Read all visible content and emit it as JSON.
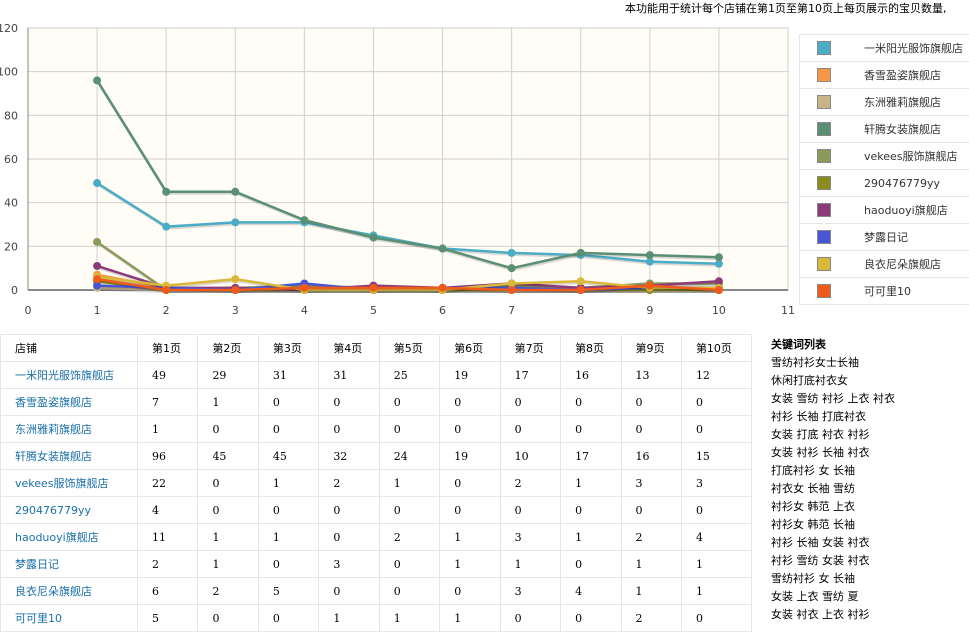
{
  "header": {
    "note": "本功能用于统计每个店铺在第1页至第10页上每页展示的宝贝数量,"
  },
  "chart_data": {
    "type": "line",
    "x": [
      1,
      2,
      3,
      4,
      5,
      6,
      7,
      8,
      9,
      10
    ],
    "xlim": [
      0,
      11
    ],
    "ylim": [
      0,
      120
    ],
    "xticks": [
      0,
      1,
      2,
      3,
      4,
      5,
      6,
      7,
      8,
      9,
      10,
      11
    ],
    "yticks": [
      0,
      20,
      40,
      60,
      80,
      100,
      120
    ],
    "grid": true,
    "legend_position": "right",
    "series": [
      {
        "name": "一米阳光服饰旗舰店",
        "color": "#4bacc6",
        "values": [
          49,
          29,
          31,
          31,
          25,
          19,
          17,
          16,
          13,
          12
        ]
      },
      {
        "name": "香雪盈姿旗舰店",
        "color": "#f79646",
        "values": [
          7,
          1,
          0,
          0,
          0,
          0,
          0,
          0,
          0,
          0
        ]
      },
      {
        "name": "东洲雅莉旗舰店",
        "color": "#c9b48a",
        "values": [
          1,
          0,
          0,
          0,
          0,
          0,
          0,
          0,
          0,
          0
        ]
      },
      {
        "name": "轩腾女装旗舰店",
        "color": "#5a8f73",
        "values": [
          96,
          45,
          45,
          32,
          24,
          19,
          10,
          17,
          16,
          15
        ]
      },
      {
        "name": "vekees服饰旗舰店",
        "color": "#8a9a5b",
        "values": [
          22,
          0,
          1,
          2,
          1,
          0,
          2,
          1,
          3,
          3
        ]
      },
      {
        "name": "290476779yy",
        "color": "#8b8b1e",
        "values": [
          4,
          0,
          0,
          0,
          0,
          0,
          0,
          0,
          0,
          0
        ]
      },
      {
        "name": "haoduoyi旗舰店",
        "color": "#8b3a7a",
        "values": [
          11,
          1,
          1,
          0,
          2,
          1,
          3,
          1,
          2,
          4
        ]
      },
      {
        "name": "梦露日记",
        "color": "#4a55d6",
        "values": [
          2,
          1,
          0,
          3,
          0,
          1,
          1,
          0,
          1,
          1
        ]
      },
      {
        "name": "良衣尼朵旗舰店",
        "color": "#d9b83a",
        "values": [
          6,
          2,
          5,
          0,
          0,
          0,
          3,
          4,
          1,
          1
        ]
      },
      {
        "name": "可可里10",
        "color": "#f05a1a",
        "values": [
          5,
          0,
          0,
          1,
          1,
          1,
          0,
          0,
          2,
          0
        ]
      }
    ]
  },
  "table": {
    "headers": [
      "店铺",
      "第1页",
      "第2页",
      "第3页",
      "第4页",
      "第5页",
      "第6页",
      "第7页",
      "第8页",
      "第9页",
      "第10页"
    ],
    "rows": [
      [
        "一米阳光服饰旗舰店",
        "49",
        "29",
        "31",
        "31",
        "25",
        "19",
        "17",
        "16",
        "13",
        "12"
      ],
      [
        "香雪盈姿旗舰店",
        "7",
        "1",
        "0",
        "0",
        "0",
        "0",
        "0",
        "0",
        "0",
        "0"
      ],
      [
        "东洲雅莉旗舰店",
        "1",
        "0",
        "0",
        "0",
        "0",
        "0",
        "0",
        "0",
        "0",
        "0"
      ],
      [
        "轩腾女装旗舰店",
        "96",
        "45",
        "45",
        "32",
        "24",
        "19",
        "10",
        "17",
        "16",
        "15"
      ],
      [
        "vekees服饰旗舰店",
        "22",
        "0",
        "1",
        "2",
        "1",
        "0",
        "2",
        "1",
        "3",
        "3"
      ],
      [
        "290476779yy",
        "4",
        "0",
        "0",
        "0",
        "0",
        "0",
        "0",
        "0",
        "0",
        "0"
      ],
      [
        "haoduoyi旗舰店",
        "11",
        "1",
        "1",
        "0",
        "2",
        "1",
        "3",
        "1",
        "2",
        "4"
      ],
      [
        "梦露日记",
        "2",
        "1",
        "0",
        "3",
        "0",
        "1",
        "1",
        "0",
        "1",
        "1"
      ],
      [
        "良衣尼朵旗舰店",
        "6",
        "2",
        "5",
        "0",
        "0",
        "0",
        "3",
        "4",
        "1",
        "1"
      ],
      [
        "可可里10",
        "5",
        "0",
        "0",
        "1",
        "1",
        "1",
        "0",
        "0",
        "2",
        "0"
      ]
    ]
  },
  "keywords": {
    "title": "关键词列表",
    "items": [
      "雪纺衬衫女士长袖",
      "休闲打底衬衣女",
      "女装 雪纺 衬衫 上衣 衬衣",
      "衬衫 长袖 打底衬衣",
      "女装 打底 衬衣 衬衫",
      "女装 衬衫 长袖 衬衣",
      "打底衬衫 女 长袖",
      "衬衣女 长袖 雪纺",
      "衬衫女 韩范 上衣",
      "衬衫女 韩范 长袖",
      "衬衫 长袖 女装 衬衣",
      "衬衫 雪纺 女装 衬衣",
      "雪纺衬衫 女 长袖",
      "女装 上衣 雪纺 夏",
      "女装 衬衣 上衣 衬衫"
    ]
  }
}
